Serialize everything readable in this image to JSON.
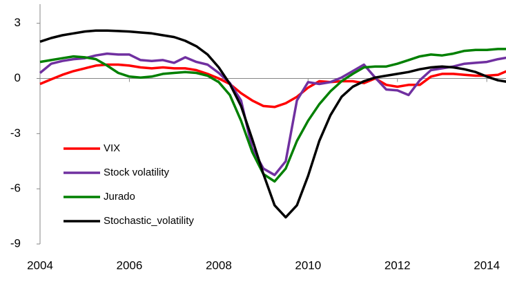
{
  "chart_data": {
    "type": "line",
    "x": [
      2004,
      2004.25,
      2004.5,
      2004.75,
      2005,
      2005.25,
      2005.5,
      2005.75,
      2006,
      2006.25,
      2006.5,
      2006.75,
      2007,
      2007.25,
      2007.5,
      2007.75,
      2008,
      2008.25,
      2008.5,
      2008.75,
      2009,
      2009.25,
      2009.5,
      2009.75,
      2010,
      2010.25,
      2010.5,
      2010.75,
      2011,
      2011.25,
      2011.5,
      2011.75,
      2012,
      2012.25,
      2012.5,
      2012.75,
      2013,
      2013.25,
      2013.5,
      2013.75,
      2014,
      2014.25,
      2014.5
    ],
    "series": [
      {
        "name": "VIX",
        "color": "#ff0000",
        "values": [
          -0.3,
          -0.05,
          0.2,
          0.4,
          0.55,
          0.7,
          0.75,
          0.75,
          0.7,
          0.6,
          0.55,
          0.6,
          0.55,
          0.55,
          0.45,
          0.25,
          0,
          -0.3,
          -0.8,
          -1.2,
          -1.5,
          -1.55,
          -1.35,
          -1.0,
          -0.5,
          -0.15,
          -0.2,
          -0.15,
          -0.15,
          -0.25,
          0,
          -0.35,
          -0.45,
          -0.35,
          -0.35,
          0.1,
          0.25,
          0.25,
          0.2,
          0.15,
          0.15,
          0.2,
          0.45
        ]
      },
      {
        "name": "Stock volatility",
        "color": "#7030a0",
        "values": [
          0.3,
          0.8,
          0.95,
          1.05,
          1.1,
          1.25,
          1.35,
          1.3,
          1.3,
          1.0,
          0.95,
          1.0,
          0.85,
          1.15,
          0.9,
          0.75,
          0.3,
          -0.25,
          -1.2,
          -3.8,
          -4.9,
          -5.25,
          -4.5,
          -1.2,
          -0.2,
          -0.3,
          -0.2,
          0.05,
          0.4,
          0.75,
          0.05,
          -0.6,
          -0.65,
          -0.9,
          -0.1,
          0.45,
          0.55,
          0.65,
          0.8,
          0.85,
          0.9,
          1.05,
          1.15
        ]
      },
      {
        "name": "Jurado",
        "color": "#008000",
        "values": [
          0.9,
          1.0,
          1.1,
          1.2,
          1.15,
          1.05,
          0.7,
          0.3,
          0.1,
          0.05,
          0.1,
          0.25,
          0.3,
          0.35,
          0.3,
          0.15,
          -0.2,
          -0.9,
          -2.3,
          -4.0,
          -5.2,
          -5.6,
          -4.9,
          -3.4,
          -2.3,
          -1.4,
          -0.7,
          -0.15,
          0.25,
          0.6,
          0.65,
          0.65,
          0.8,
          1.0,
          1.2,
          1.3,
          1.25,
          1.35,
          1.5,
          1.55,
          1.55,
          1.6,
          1.6
        ]
      },
      {
        "name": "Stochastic_volatility",
        "color": "#000000",
        "values": [
          2.0,
          2.2,
          2.35,
          2.45,
          2.55,
          2.6,
          2.6,
          2.58,
          2.55,
          2.5,
          2.45,
          2.35,
          2.25,
          2.05,
          1.75,
          1.3,
          0.6,
          -0.3,
          -1.5,
          -3.3,
          -5.2,
          -6.9,
          -7.55,
          -6.9,
          -5.3,
          -3.4,
          -2.0,
          -1.0,
          -0.45,
          -0.15,
          0.05,
          0.15,
          0.25,
          0.35,
          0.5,
          0.6,
          0.65,
          0.6,
          0.5,
          0.35,
          0.1,
          -0.1,
          -0.2
        ]
      }
    ],
    "xlim": [
      2004,
      2014.43
    ],
    "xticks": [
      2004,
      2006,
      2008,
      2010,
      2012,
      2014
    ],
    "ylim": [
      -9,
      4.04
    ],
    "yticks": [
      3,
      0,
      -3,
      -6,
      -9
    ],
    "legend": "lower-left"
  }
}
